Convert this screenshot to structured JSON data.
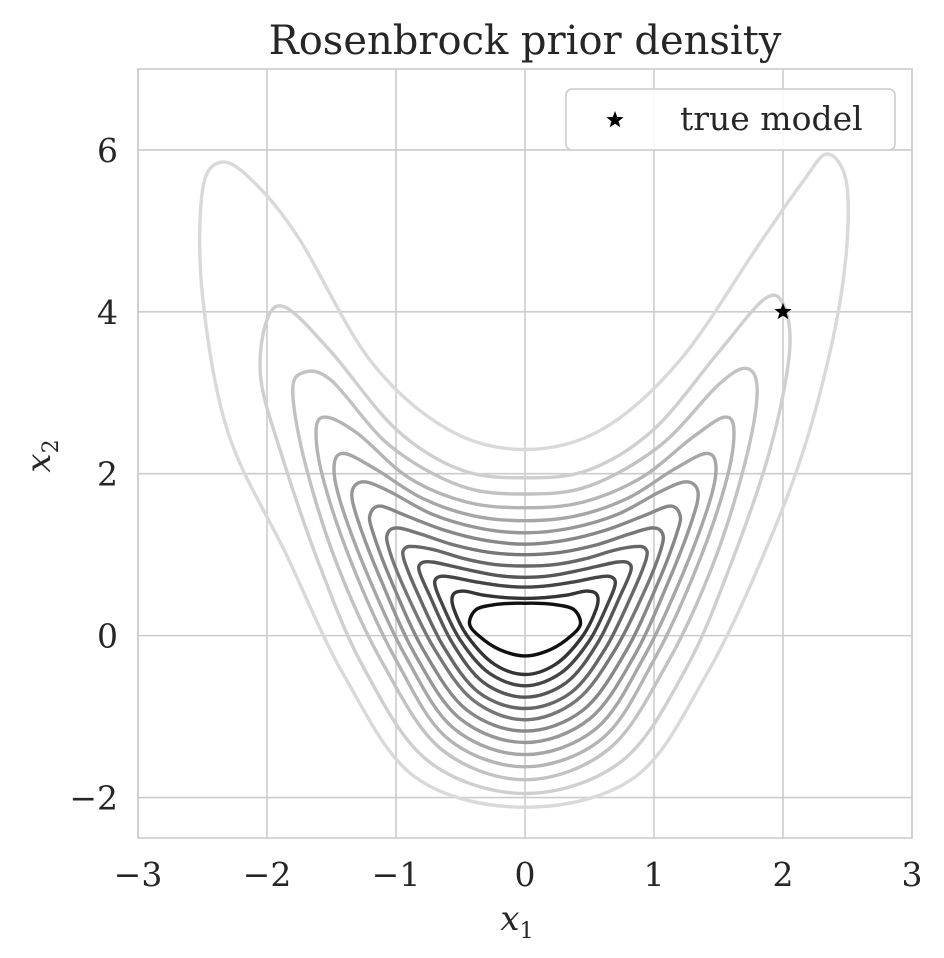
{
  "chart_data": {
    "type": "contour",
    "title": "Rosenbrock prior density",
    "xlabel": "x",
    "xlabel_sub": "1",
    "ylabel": "x",
    "ylabel_sub": "2",
    "xlim": [
      -3,
      3
    ],
    "ylim": [
      -2.5,
      7
    ],
    "xticks": [
      -3,
      -2,
      -1,
      0,
      1,
      2,
      3
    ],
    "yticks": [
      -2,
      0,
      2,
      4,
      6
    ],
    "xtick_labels": [
      "−3",
      "−2",
      "−1",
      "0",
      "1",
      "2",
      "3"
    ],
    "ytick_labels": [
      "−2",
      "0",
      "2",
      "4",
      "6"
    ],
    "grid": true,
    "legend": {
      "position": "top-right",
      "entries": [
        "true model"
      ]
    },
    "true_model": {
      "label": "true model",
      "x": 2.0,
      "y": 4.0,
      "marker": "star",
      "color": "#000000"
    },
    "contour_levels": [
      {
        "level": 1,
        "color": "#d9d9d9",
        "points": [
          [
            0.0,
            -2.12
          ],
          [
            0.85,
            -1.75
          ],
          [
            1.4,
            -0.5
          ],
          [
            1.85,
            1.0
          ],
          [
            2.2,
            2.5
          ],
          [
            2.45,
            4.2
          ],
          [
            2.5,
            5.5
          ],
          [
            2.35,
            5.95
          ],
          [
            2.15,
            5.6
          ],
          [
            1.8,
            4.8
          ],
          [
            1.2,
            3.4
          ],
          [
            0.6,
            2.55
          ],
          [
            0.0,
            2.3
          ],
          [
            -0.6,
            2.55
          ],
          [
            -1.2,
            3.4
          ],
          [
            -1.75,
            4.9
          ],
          [
            -2.1,
            5.6
          ],
          [
            -2.35,
            5.85
          ],
          [
            -2.5,
            5.5
          ],
          [
            -2.5,
            4.2
          ],
          [
            -2.3,
            2.5
          ],
          [
            -1.85,
            1.0
          ],
          [
            -1.4,
            -0.5
          ],
          [
            -0.85,
            -1.75
          ]
        ]
      },
      {
        "level": 2,
        "color": "#cfcfcf",
        "points": [
          [
            0.0,
            -1.95
          ],
          [
            0.75,
            -1.55
          ],
          [
            1.25,
            -0.4
          ],
          [
            1.6,
            0.9
          ],
          [
            1.9,
            2.3
          ],
          [
            2.05,
            3.5
          ],
          [
            2.0,
            4.1
          ],
          [
            1.85,
            4.15
          ],
          [
            1.5,
            3.5
          ],
          [
            1.0,
            2.55
          ],
          [
            0.5,
            2.05
          ],
          [
            0.0,
            1.95
          ],
          [
            -0.5,
            2.05
          ],
          [
            -1.0,
            2.55
          ],
          [
            -1.5,
            3.5
          ],
          [
            -1.85,
            4.05
          ],
          [
            -2.0,
            3.9
          ],
          [
            -2.05,
            3.2
          ],
          [
            -1.9,
            2.3
          ],
          [
            -1.6,
            0.9
          ],
          [
            -1.25,
            -0.4
          ],
          [
            -0.75,
            -1.55
          ]
        ]
      },
      {
        "level": 3,
        "color": "#c2c2c2",
        "points": [
          [
            0.0,
            -1.78
          ],
          [
            0.65,
            -1.4
          ],
          [
            1.1,
            -0.35
          ],
          [
            1.45,
            0.85
          ],
          [
            1.7,
            2.1
          ],
          [
            1.8,
            3.0
          ],
          [
            1.72,
            3.3
          ],
          [
            1.5,
            3.1
          ],
          [
            1.05,
            2.35
          ],
          [
            0.5,
            1.85
          ],
          [
            0.0,
            1.75
          ],
          [
            -0.5,
            1.85
          ],
          [
            -1.05,
            2.35
          ],
          [
            -1.5,
            3.15
          ],
          [
            -1.72,
            3.25
          ],
          [
            -1.8,
            3.0
          ],
          [
            -1.7,
            2.1
          ],
          [
            -1.45,
            0.85
          ],
          [
            -1.1,
            -0.35
          ],
          [
            -0.65,
            -1.4
          ]
        ]
      },
      {
        "level": 4,
        "color": "#b4b4b4",
        "points": [
          [
            0.0,
            -1.62
          ],
          [
            0.6,
            -1.27
          ],
          [
            1.0,
            -0.3
          ],
          [
            1.32,
            0.8
          ],
          [
            1.55,
            1.85
          ],
          [
            1.62,
            2.5
          ],
          [
            1.55,
            2.7
          ],
          [
            1.3,
            2.45
          ],
          [
            0.9,
            1.95
          ],
          [
            0.45,
            1.65
          ],
          [
            0.0,
            1.58
          ],
          [
            -0.45,
            1.65
          ],
          [
            -0.9,
            1.95
          ],
          [
            -1.3,
            2.5
          ],
          [
            -1.55,
            2.7
          ],
          [
            -1.62,
            2.5
          ],
          [
            -1.55,
            1.85
          ],
          [
            -1.32,
            0.8
          ],
          [
            -1.0,
            -0.3
          ],
          [
            -0.6,
            -1.27
          ]
        ]
      },
      {
        "level": 5,
        "color": "#a6a6a6",
        "points": [
          [
            0.0,
            -1.47
          ],
          [
            0.55,
            -1.15
          ],
          [
            0.92,
            -0.27
          ],
          [
            1.22,
            0.75
          ],
          [
            1.43,
            1.65
          ],
          [
            1.48,
            2.1
          ],
          [
            1.4,
            2.25
          ],
          [
            1.15,
            2.05
          ],
          [
            0.8,
            1.7
          ],
          [
            0.4,
            1.48
          ],
          [
            0.0,
            1.42
          ],
          [
            -0.4,
            1.48
          ],
          [
            -0.8,
            1.7
          ],
          [
            -1.15,
            2.05
          ],
          [
            -1.4,
            2.25
          ],
          [
            -1.48,
            2.1
          ],
          [
            -1.43,
            1.65
          ],
          [
            -1.22,
            0.75
          ],
          [
            -0.92,
            -0.27
          ],
          [
            -0.55,
            -1.15
          ]
        ]
      },
      {
        "level": 6,
        "color": "#979797",
        "points": [
          [
            0.0,
            -1.32
          ],
          [
            0.5,
            -1.03
          ],
          [
            0.85,
            -0.24
          ],
          [
            1.12,
            0.7
          ],
          [
            1.3,
            1.45
          ],
          [
            1.34,
            1.78
          ],
          [
            1.25,
            1.9
          ],
          [
            1.05,
            1.78
          ],
          [
            0.72,
            1.5
          ],
          [
            0.36,
            1.33
          ],
          [
            0.0,
            1.27
          ],
          [
            -0.36,
            1.33
          ],
          [
            -0.72,
            1.5
          ],
          [
            -1.05,
            1.78
          ],
          [
            -1.25,
            1.9
          ],
          [
            -1.34,
            1.78
          ],
          [
            -1.3,
            1.45
          ],
          [
            -1.12,
            0.7
          ],
          [
            -0.85,
            -0.24
          ],
          [
            -0.5,
            -1.03
          ]
        ]
      },
      {
        "level": 7,
        "color": "#878787",
        "points": [
          [
            0.0,
            -1.18
          ],
          [
            0.45,
            -0.92
          ],
          [
            0.78,
            -0.2
          ],
          [
            1.03,
            0.65
          ],
          [
            1.18,
            1.28
          ],
          [
            1.2,
            1.5
          ],
          [
            1.12,
            1.6
          ],
          [
            0.92,
            1.48
          ],
          [
            0.62,
            1.3
          ],
          [
            0.32,
            1.18
          ],
          [
            0.0,
            1.13
          ],
          [
            -0.32,
            1.18
          ],
          [
            -0.62,
            1.3
          ],
          [
            -0.92,
            1.48
          ],
          [
            -1.12,
            1.6
          ],
          [
            -1.2,
            1.5
          ],
          [
            -1.18,
            1.28
          ],
          [
            -1.03,
            0.65
          ],
          [
            -0.78,
            -0.2
          ],
          [
            -0.45,
            -0.92
          ]
        ]
      },
      {
        "level": 8,
        "color": "#777777",
        "points": [
          [
            0.0,
            -1.04
          ],
          [
            0.4,
            -0.8
          ],
          [
            0.7,
            -0.17
          ],
          [
            0.94,
            0.6
          ],
          [
            1.06,
            1.1
          ],
          [
            1.06,
            1.28
          ],
          [
            0.98,
            1.33
          ],
          [
            0.8,
            1.25
          ],
          [
            0.55,
            1.12
          ],
          [
            0.28,
            1.03
          ],
          [
            0.0,
            1.0
          ],
          [
            -0.28,
            1.03
          ],
          [
            -0.55,
            1.12
          ],
          [
            -0.8,
            1.25
          ],
          [
            -0.98,
            1.33
          ],
          [
            -1.06,
            1.28
          ],
          [
            -1.06,
            1.1
          ],
          [
            -0.94,
            0.6
          ],
          [
            -0.7,
            -0.17
          ],
          [
            -0.4,
            -0.8
          ]
        ]
      },
      {
        "level": 9,
        "color": "#676767",
        "points": [
          [
            0.0,
            -0.9
          ],
          [
            0.36,
            -0.7
          ],
          [
            0.63,
            -0.14
          ],
          [
            0.84,
            0.55
          ],
          [
            0.94,
            0.95
          ],
          [
            0.93,
            1.08
          ],
          [
            0.85,
            1.1
          ],
          [
            0.68,
            1.05
          ],
          [
            0.47,
            0.95
          ],
          [
            0.24,
            0.88
          ],
          [
            0.0,
            0.86
          ],
          [
            -0.24,
            0.88
          ],
          [
            -0.47,
            0.95
          ],
          [
            -0.68,
            1.05
          ],
          [
            -0.85,
            1.1
          ],
          [
            -0.93,
            1.08
          ],
          [
            -0.94,
            0.95
          ],
          [
            -0.84,
            0.55
          ],
          [
            -0.63,
            -0.14
          ],
          [
            -0.36,
            -0.7
          ]
        ]
      },
      {
        "level": 10,
        "color": "#565656",
        "points": [
          [
            0.0,
            -0.76
          ],
          [
            0.32,
            -0.58
          ],
          [
            0.56,
            -0.1
          ],
          [
            0.74,
            0.5
          ],
          [
            0.82,
            0.8
          ],
          [
            0.8,
            0.9
          ],
          [
            0.72,
            0.91
          ],
          [
            0.57,
            0.86
          ],
          [
            0.4,
            0.8
          ],
          [
            0.2,
            0.74
          ],
          [
            0.0,
            0.72
          ],
          [
            -0.2,
            0.74
          ],
          [
            -0.4,
            0.8
          ],
          [
            -0.57,
            0.86
          ],
          [
            -0.72,
            0.91
          ],
          [
            -0.8,
            0.9
          ],
          [
            -0.82,
            0.8
          ],
          [
            -0.74,
            0.5
          ],
          [
            -0.56,
            -0.1
          ],
          [
            -0.32,
            -0.58
          ]
        ]
      },
      {
        "level": 11,
        "color": "#454545",
        "points": [
          [
            0.0,
            -0.62
          ],
          [
            0.28,
            -0.46
          ],
          [
            0.5,
            -0.06
          ],
          [
            0.65,
            0.42
          ],
          [
            0.7,
            0.65
          ],
          [
            0.66,
            0.73
          ],
          [
            0.56,
            0.72
          ],
          [
            0.4,
            0.67
          ],
          [
            0.2,
            0.62
          ],
          [
            0.0,
            0.6
          ],
          [
            -0.2,
            0.62
          ],
          [
            -0.4,
            0.67
          ],
          [
            -0.56,
            0.72
          ],
          [
            -0.66,
            0.73
          ],
          [
            -0.7,
            0.65
          ],
          [
            -0.65,
            0.42
          ],
          [
            -0.5,
            -0.06
          ],
          [
            -0.28,
            -0.46
          ]
        ]
      },
      {
        "level": 12,
        "color": "#343434",
        "points": [
          [
            0.0,
            -0.48
          ],
          [
            0.24,
            -0.35
          ],
          [
            0.44,
            -0.02
          ],
          [
            0.55,
            0.32
          ],
          [
            0.56,
            0.5
          ],
          [
            0.48,
            0.55
          ],
          [
            0.32,
            0.5
          ],
          [
            0.16,
            0.47
          ],
          [
            0.0,
            0.46
          ],
          [
            -0.16,
            0.47
          ],
          [
            -0.32,
            0.5
          ],
          [
            -0.48,
            0.55
          ],
          [
            -0.56,
            0.5
          ],
          [
            -0.55,
            0.32
          ],
          [
            -0.44,
            -0.02
          ],
          [
            -0.24,
            -0.35
          ]
        ]
      },
      {
        "level": 13,
        "color": "#111111",
        "points": [
          [
            0.0,
            -0.25
          ],
          [
            0.2,
            -0.17
          ],
          [
            0.36,
            0.0
          ],
          [
            0.43,
            0.15
          ],
          [
            0.38,
            0.32
          ],
          [
            0.25,
            0.38
          ],
          [
            0.1,
            0.4
          ],
          [
            0.0,
            0.4
          ],
          [
            -0.1,
            0.4
          ],
          [
            -0.25,
            0.38
          ],
          [
            -0.38,
            0.32
          ],
          [
            -0.43,
            0.15
          ],
          [
            -0.36,
            0.0
          ],
          [
            -0.2,
            -0.17
          ]
        ]
      }
    ]
  }
}
